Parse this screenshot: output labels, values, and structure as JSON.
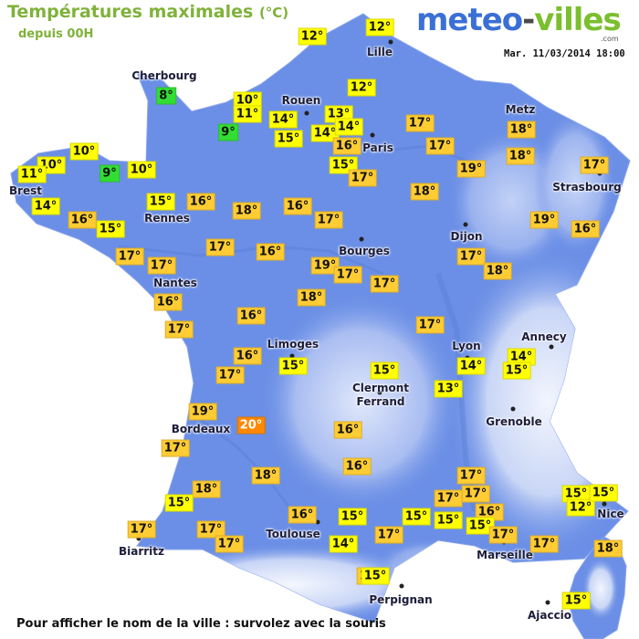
{
  "header": {
    "title": "Températures maximales",
    "title_unit": "(°C)",
    "subtitle": "depuis 00H",
    "logo_part1": "meteo",
    "logo_part2": "-",
    "logo_part3": "villes",
    "logo_tld": ".com",
    "datetime": "Mar. 11/03/2014 18:00"
  },
  "footer": {
    "hint": "Pour afficher le nom de la ville : survolez avec la souris"
  },
  "colors": {
    "title": "#7fb23a",
    "sea": "#ffffff",
    "land_lowland": "#6b8fe6",
    "land_highland": "#e8eefc",
    "temp_8_10": "#33dd33",
    "temp_10_16": "#ffff00",
    "temp_16_19": "#ffcc33",
    "temp_20": "#ff8800"
  },
  "cities": [
    {
      "key": "lille",
      "name": "Lille"
    },
    {
      "key": "cherbourg",
      "name": "Cherbourg"
    },
    {
      "key": "rouen",
      "name": "Rouen"
    },
    {
      "key": "metz",
      "name": "Metz"
    },
    {
      "key": "paris",
      "name": "Paris"
    },
    {
      "key": "brest",
      "name": "Brest"
    },
    {
      "key": "strasbourg",
      "name": "Strasbourg"
    },
    {
      "key": "rennes",
      "name": "Rennes"
    },
    {
      "key": "dijon",
      "name": "Dijon"
    },
    {
      "key": "bourges",
      "name": "Bourges"
    },
    {
      "key": "nantes",
      "name": "Nantes"
    },
    {
      "key": "annecy",
      "name": "Annecy"
    },
    {
      "key": "limoges",
      "name": "Limoges"
    },
    {
      "key": "lyon",
      "name": "Lyon"
    },
    {
      "key": "clermont",
      "name": "Clermont\nFerrand"
    },
    {
      "key": "grenoble",
      "name": "Grenoble"
    },
    {
      "key": "bordeaux",
      "name": "Bordeaux"
    },
    {
      "key": "nice",
      "name": "Nice"
    },
    {
      "key": "toulouse",
      "name": "Toulouse"
    },
    {
      "key": "biarritz",
      "name": "Biarritz"
    },
    {
      "key": "marseille",
      "name": "Marseille"
    },
    {
      "key": "perpignan",
      "name": "Perpignan"
    },
    {
      "key": "ajaccio",
      "name": "Ajaccio"
    }
  ],
  "temperatures": [
    {
      "v": 12,
      "label": "12°"
    },
    {
      "v": 12,
      "label": "12°"
    },
    {
      "v": 8,
      "label": "8°"
    },
    {
      "v": 10,
      "label": "10°"
    },
    {
      "v": 11,
      "label": "11°"
    },
    {
      "v": 12,
      "label": "12°"
    },
    {
      "v": 14,
      "label": "14°"
    },
    {
      "v": 9,
      "label": "9°"
    },
    {
      "v": 13,
      "label": "13°"
    },
    {
      "v": 14,
      "label": "14°"
    },
    {
      "v": 14,
      "label": "14°"
    },
    {
      "v": 15,
      "label": "15°"
    },
    {
      "v": 17,
      "label": "17°"
    },
    {
      "v": 18,
      "label": "18°"
    },
    {
      "v": 10,
      "label": "10°"
    },
    {
      "v": 16,
      "label": "16°"
    },
    {
      "v": 17,
      "label": "17°"
    },
    {
      "v": 18,
      "label": "18°"
    },
    {
      "v": 10,
      "label": "10°"
    },
    {
      "v": 11,
      "label": "11°"
    },
    {
      "v": 9,
      "label": "9°"
    },
    {
      "v": 10,
      "label": "10°"
    },
    {
      "v": 15,
      "label": "15°"
    },
    {
      "v": 17,
      "label": "17°"
    },
    {
      "v": 19,
      "label": "19°"
    },
    {
      "v": 17,
      "label": "17°"
    },
    {
      "v": 18,
      "label": "18°"
    },
    {
      "v": 14,
      "label": "14°"
    },
    {
      "v": 16,
      "label": "16°"
    },
    {
      "v": 15,
      "label": "15°"
    },
    {
      "v": 16,
      "label": "16°"
    },
    {
      "v": 18,
      "label": "18°"
    },
    {
      "v": 16,
      "label": "16°"
    },
    {
      "v": 17,
      "label": "17°"
    },
    {
      "v": 19,
      "label": "19°"
    },
    {
      "v": 16,
      "label": "16°"
    },
    {
      "v": 15,
      "label": "15°"
    },
    {
      "v": 17,
      "label": "17°"
    },
    {
      "v": 17,
      "label": "17°"
    },
    {
      "v": 17,
      "label": "17°"
    },
    {
      "v": 16,
      "label": "16°"
    },
    {
      "v": 17,
      "label": "17°"
    },
    {
      "v": 18,
      "label": "18°"
    },
    {
      "v": 19,
      "label": "19°"
    },
    {
      "v": 17,
      "label": "17°"
    },
    {
      "v": 16,
      "label": "16°"
    },
    {
      "v": 18,
      "label": "18°"
    },
    {
      "v": 17,
      "label": "17°"
    },
    {
      "v": 16,
      "label": "16°"
    },
    {
      "v": 17,
      "label": "17°"
    },
    {
      "v": 17,
      "label": "17°"
    },
    {
      "v": 16,
      "label": "16°"
    },
    {
      "v": 15,
      "label": "15°"
    },
    {
      "v": 14,
      "label": "14°"
    },
    {
      "v": 15,
      "label": "15°"
    },
    {
      "v": 17,
      "label": "17°"
    },
    {
      "v": 15,
      "label": "15°"
    },
    {
      "v": 13,
      "label": "13°"
    },
    {
      "v": 14,
      "label": "14°"
    },
    {
      "v": 19,
      "label": "19°"
    },
    {
      "v": 20,
      "label": "20°"
    },
    {
      "v": 16,
      "label": "16°"
    },
    {
      "v": 17,
      "label": "17°"
    },
    {
      "v": 16,
      "label": "16°"
    },
    {
      "v": 18,
      "label": "18°"
    },
    {
      "v": 18,
      "label": "18°"
    },
    {
      "v": 15,
      "label": "15°"
    },
    {
      "v": 17,
      "label": "17°"
    },
    {
      "v": 17,
      "label": "17°"
    },
    {
      "v": 17,
      "label": "17°"
    },
    {
      "v": 16,
      "label": "16°"
    },
    {
      "v": 15,
      "label": "15°"
    },
    {
      "v": 15,
      "label": "15°"
    },
    {
      "v": 17,
      "label": "17°"
    },
    {
      "v": 15,
      "label": "15°"
    },
    {
      "v": 16,
      "label": "16°"
    },
    {
      "v": 15,
      "label": "15°"
    },
    {
      "v": 17,
      "label": "17°"
    },
    {
      "v": 17,
      "label": "17°"
    },
    {
      "v": 17,
      "label": "17°"
    },
    {
      "v": 17,
      "label": "17°"
    },
    {
      "v": 12,
      "label": "12°"
    },
    {
      "v": 15,
      "label": "15°"
    },
    {
      "v": 18,
      "label": "18°"
    },
    {
      "v": 17,
      "label": "17°"
    },
    {
      "v": 17,
      "label": "17°"
    },
    {
      "v": 14,
      "label": "14°"
    },
    {
      "v": 15,
      "label": "15°"
    },
    {
      "v": 15,
      "label": "15°"
    },
    {
      "v": 15,
      "label": "15°"
    }
  ]
}
